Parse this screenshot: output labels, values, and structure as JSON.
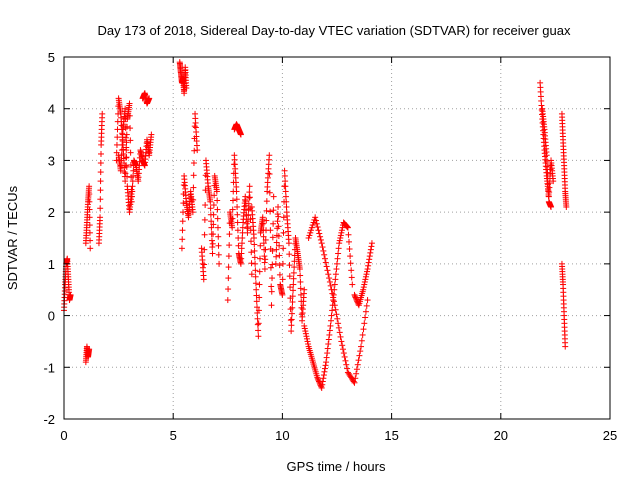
{
  "chart_data": {
    "type": "scatter",
    "title": "Day 173 of 2018, Sidereal Day-to-day VTEC variation (SDTVAR) for receiver guax",
    "xlabel": "GPS time / hours",
    "ylabel": "SDTVAR / TECUs",
    "xlim": [
      0,
      25
    ],
    "ylim": [
      -2,
      5
    ],
    "xticks": [
      "0",
      "5",
      "10",
      "15",
      "20",
      "25"
    ],
    "yticks": [
      "-2",
      "-1",
      "0",
      "1",
      "2",
      "3",
      "4",
      "5"
    ],
    "grid": true,
    "marker": "+",
    "series_color": "#ff0000",
    "segments": [
      {
        "name": "seg-a",
        "x": [
          0.0,
          0.05,
          0.1,
          0.15,
          0.2,
          0.25,
          0.3
        ],
        "y": [
          0.1,
          0.6,
          1.0,
          1.1,
          0.7,
          0.3,
          0.4
        ]
      },
      {
        "name": "seg-b",
        "x": [
          1.0,
          1.05,
          1.1,
          1.15
        ],
        "y": [
          -0.9,
          -0.6,
          -0.8,
          -0.65
        ]
      },
      {
        "name": "seg-c",
        "x": [
          1.0,
          1.05,
          1.1,
          1.15,
          1.2
        ],
        "y": [
          1.4,
          1.8,
          2.2,
          2.5,
          1.3
        ]
      },
      {
        "name": "seg-d",
        "x": [
          1.6,
          1.65,
          1.7,
          1.75
        ],
        "y": [
          1.4,
          1.9,
          3.3,
          3.9
        ]
      },
      {
        "name": "seg-e",
        "x": [
          2.4,
          2.5,
          2.6,
          2.7,
          2.8,
          2.9,
          3.0,
          3.1,
          3.2,
          3.3,
          3.4,
          3.5,
          3.6,
          3.7,
          3.8,
          3.9,
          4.0
        ],
        "y": [
          3.0,
          4.2,
          3.9,
          3.3,
          2.6,
          3.8,
          4.1,
          2.2,
          3.0,
          2.9,
          2.6,
          3.2,
          3.0,
          2.9,
          3.4,
          3.1,
          3.5
        ]
      },
      {
        "name": "seg-f",
        "x": [
          2.5,
          2.6,
          2.7,
          2.8,
          2.9,
          3.0,
          3.1
        ],
        "y": [
          3.1,
          2.8,
          3.6,
          4.0,
          2.5,
          2.0,
          2.4
        ]
      },
      {
        "name": "seg-g",
        "x": [
          3.6,
          3.7,
          3.8,
          3.9
        ],
        "y": [
          4.2,
          4.3,
          4.1,
          4.2
        ]
      },
      {
        "name": "seg-h",
        "x": [
          5.3,
          5.35,
          5.4,
          5.45,
          5.5,
          5.55,
          5.6
        ],
        "y": [
          4.9,
          4.7,
          4.5,
          4.6,
          4.3,
          4.8,
          4.4
        ]
      },
      {
        "name": "seg-i",
        "x": [
          5.4,
          5.5,
          5.6,
          5.7,
          5.8,
          5.9,
          6.0,
          6.1
        ],
        "y": [
          1.3,
          2.7,
          2.2,
          1.9,
          2.4,
          2.0,
          3.9,
          3.2
        ]
      },
      {
        "name": "seg-j",
        "x": [
          6.3,
          6.4,
          6.5,
          6.6,
          6.7,
          6.8,
          6.9,
          7.0,
          7.1
        ],
        "y": [
          1.3,
          0.7,
          3.0,
          2.5,
          2.2,
          1.2,
          2.7,
          2.4,
          1.0
        ]
      },
      {
        "name": "seg-k",
        "x": [
          7.5,
          7.6,
          7.7,
          7.8,
          7.9,
          8.0,
          8.1,
          8.2,
          8.3,
          8.4,
          8.5,
          8.6
        ],
        "y": [
          0.3,
          2.0,
          1.7,
          3.1,
          2.4,
          1.2,
          1.0,
          1.8,
          2.3,
          1.6,
          2.5,
          0.8
        ]
      },
      {
        "name": "seg-l",
        "x": [
          7.8,
          7.9,
          8.0,
          8.1
        ],
        "y": [
          3.6,
          3.7,
          3.6,
          3.5
        ]
      },
      {
        "name": "seg-m",
        "x": [
          8.6,
          8.7,
          8.8,
          8.9,
          9.0,
          9.1,
          9.2,
          9.3,
          9.4,
          9.5,
          9.6
        ],
        "y": [
          2.1,
          1.5,
          0.5,
          -0.4,
          1.6,
          1.9,
          0.9,
          2.4,
          3.1,
          0.2,
          2.3
        ]
      },
      {
        "name": "seg-n",
        "x": [
          9.7,
          9.8,
          9.9,
          10.0,
          10.1,
          10.2,
          10.3,
          10.4,
          10.5,
          10.6,
          10.7,
          10.8,
          10.9,
          11.0
        ],
        "y": [
          1.0,
          2.1,
          0.6,
          0.4,
          2.8,
          2.0,
          1.4,
          -0.3,
          0.6,
          1.5,
          1.2,
          0.9,
          -0.1,
          0.5
        ]
      },
      {
        "name": "seg-o",
        "x": [
          11.0,
          11.2,
          11.4,
          11.6,
          11.8,
          12.0,
          12.2,
          12.4,
          12.6,
          12.8,
          13.0,
          13.2
        ],
        "y": [
          -0.2,
          -0.6,
          -0.9,
          -1.2,
          -1.4,
          -0.9,
          -0.2,
          0.6,
          1.4,
          1.8,
          1.7,
          0.6
        ]
      },
      {
        "name": "seg-p",
        "x": [
          11.2,
          11.5,
          11.8,
          12.1,
          12.4,
          12.7,
          13.0,
          13.3,
          13.6,
          13.9
        ],
        "y": [
          1.5,
          1.9,
          1.4,
          0.8,
          0.2,
          -0.5,
          -1.1,
          -1.3,
          -0.6,
          0.3
        ]
      },
      {
        "name": "seg-q",
        "x": [
          13.3,
          13.5,
          13.7,
          13.9,
          14.1
        ],
        "y": [
          0.4,
          0.2,
          0.5,
          0.9,
          1.4
        ]
      },
      {
        "name": "seg-r",
        "x": [
          21.8,
          21.9,
          22.0,
          22.1,
          22.2,
          22.3,
          22.4
        ],
        "y": [
          4.5,
          3.8,
          3.2,
          2.7,
          2.3,
          3.0,
          2.6
        ]
      },
      {
        "name": "seg-s",
        "x": [
          21.9,
          22.0,
          22.1,
          22.2,
          22.3
        ],
        "y": [
          4.0,
          3.6,
          3.1,
          2.2,
          2.1
        ]
      },
      {
        "name": "seg-t",
        "x": [
          22.8,
          22.85,
          22.9,
          22.95,
          23.0
        ],
        "y": [
          3.9,
          3.4,
          2.9,
          2.4,
          2.1
        ]
      },
      {
        "name": "seg-u",
        "x": [
          22.8,
          22.85,
          22.9,
          22.95
        ],
        "y": [
          1.0,
          0.6,
          0.0,
          -0.6
        ]
      }
    ]
  }
}
